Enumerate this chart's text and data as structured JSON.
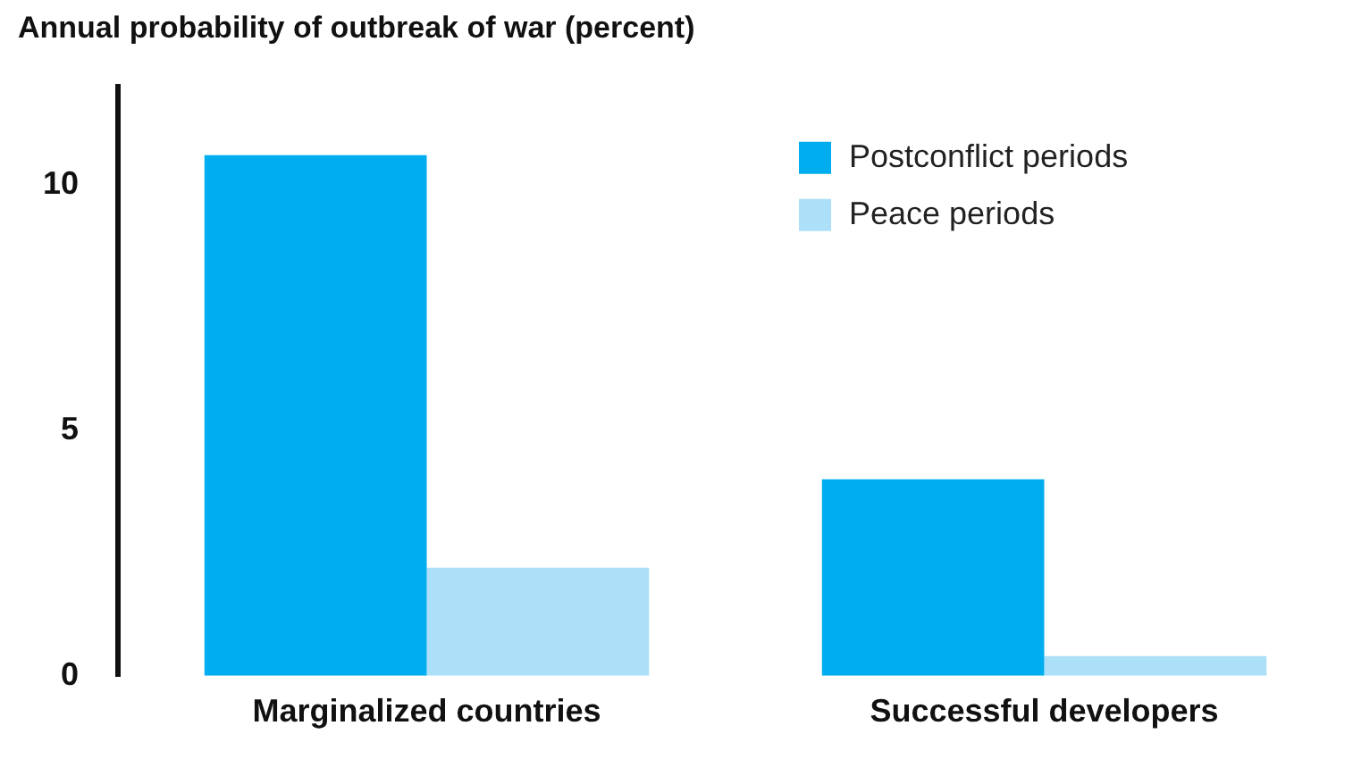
{
  "chart_data": {
    "type": "bar",
    "title": "Annual probability of outbreak of war (percent)",
    "categories": [
      "Marginalized countries",
      "Successful developers"
    ],
    "series": [
      {
        "name": "Postconflict periods",
        "color": "#00aeef",
        "values": [
          10.6,
          4.0
        ]
      },
      {
        "name": "Peace periods",
        "color": "#abe0f8",
        "values": [
          2.2,
          0.4
        ]
      }
    ],
    "ylim": [
      0,
      12
    ],
    "yticks": [
      0,
      5,
      10
    ],
    "grid": false,
    "legend": "top right"
  }
}
